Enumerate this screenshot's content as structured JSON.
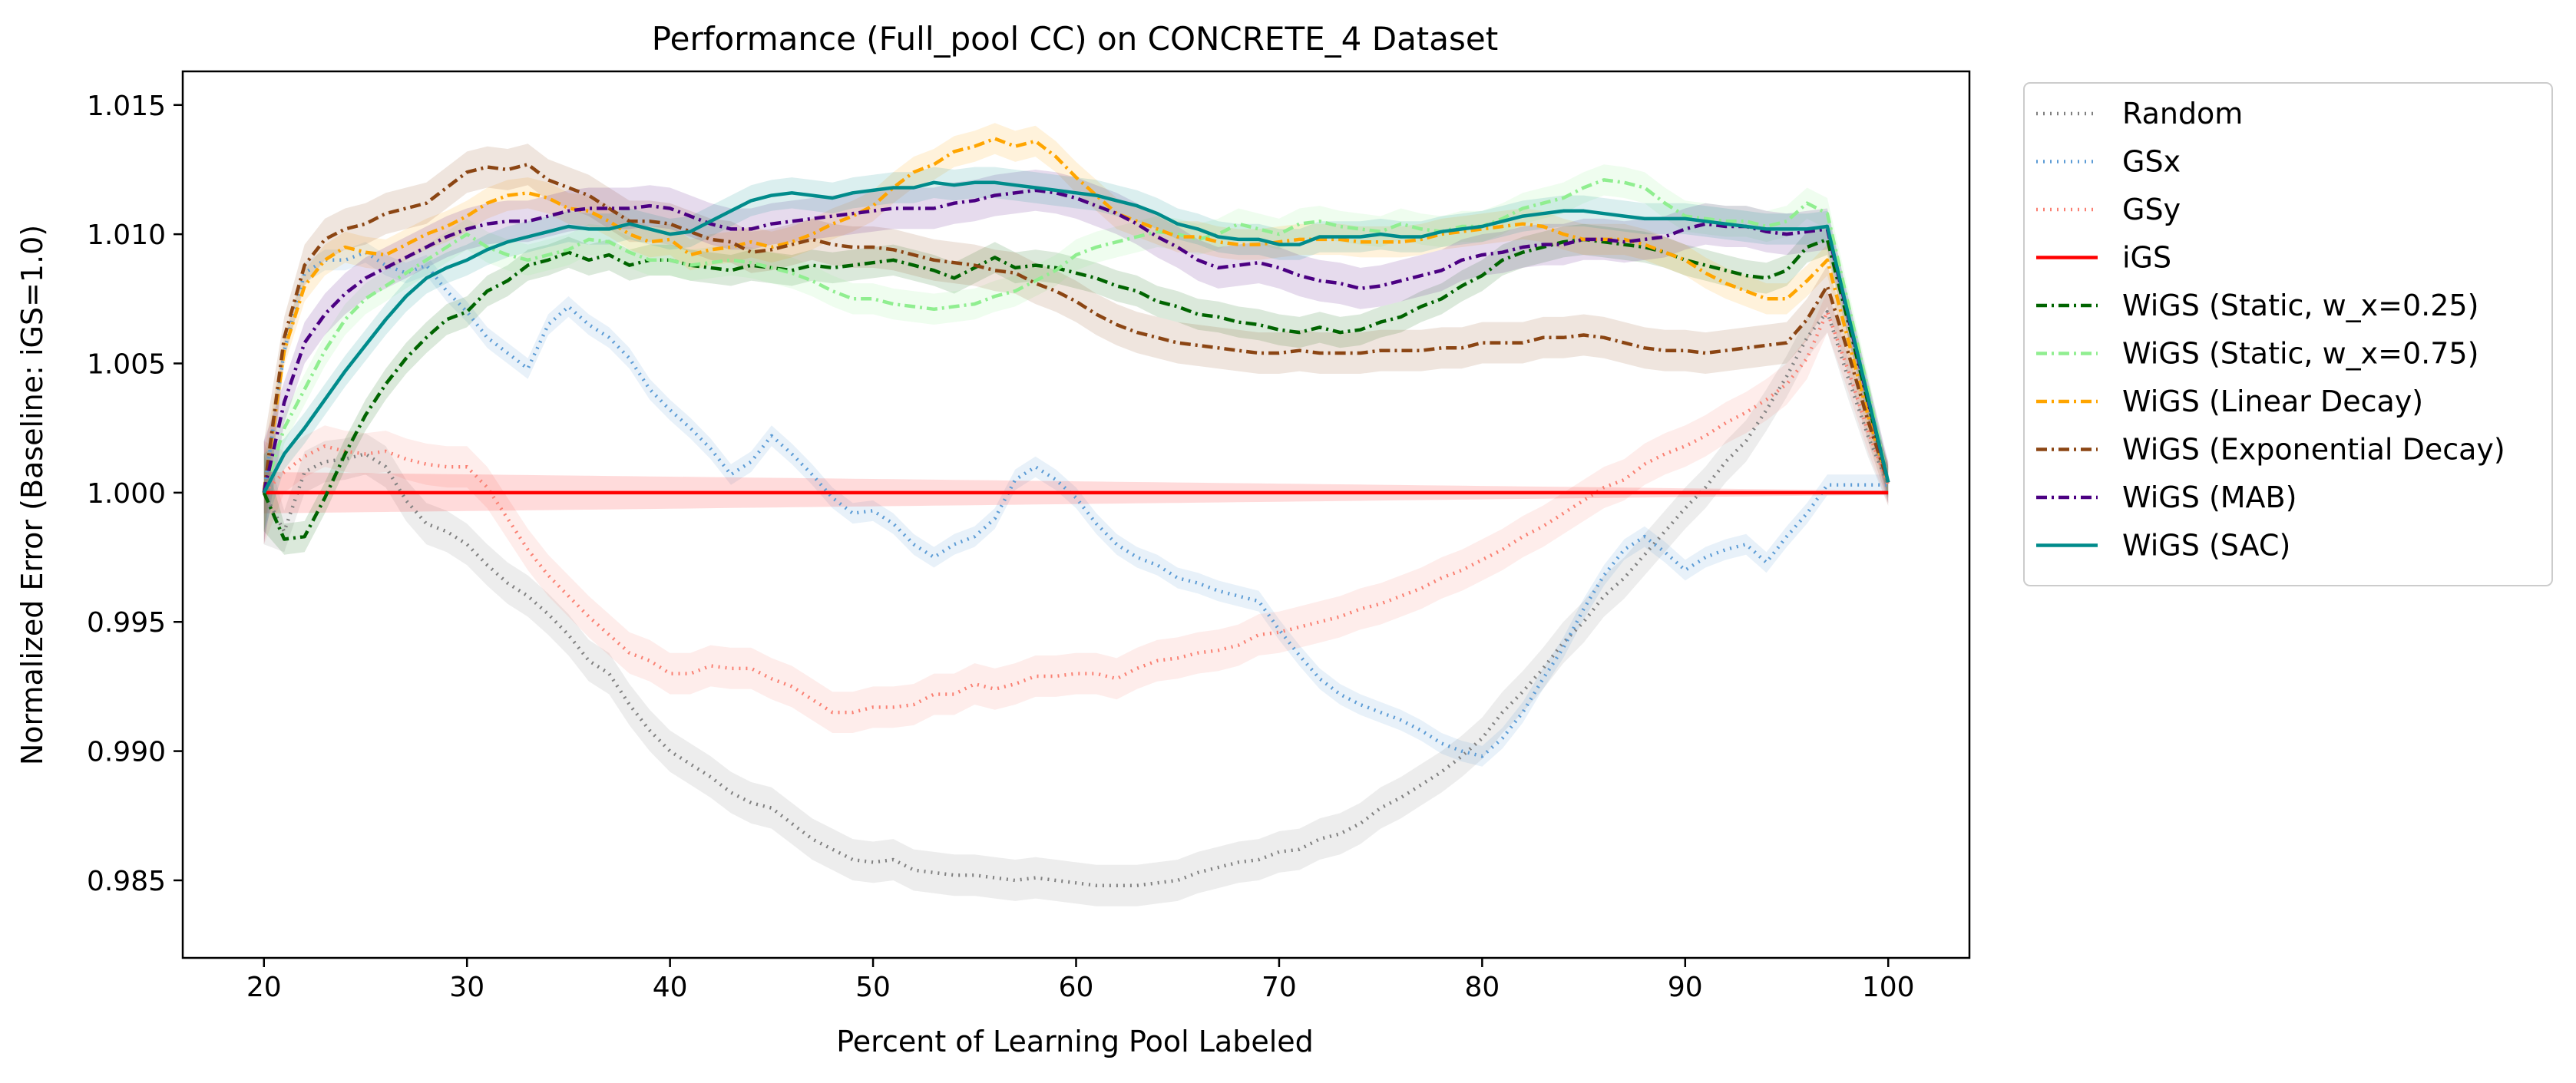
{
  "chart_data": {
    "type": "line",
    "title": "Performance (Full_pool CC) on CONCRETE_4 Dataset",
    "xlabel": "Percent of Learning Pool Labeled",
    "ylabel": "Normalized Error (Baseline: iGS=1.0)",
    "xlim": [
      16,
      104
    ],
    "ylim": [
      0.982,
      1.0163
    ],
    "xticks": [
      20,
      30,
      40,
      50,
      60,
      70,
      80,
      90,
      100
    ],
    "xtick_labels": [
      "20",
      "30",
      "40",
      "50",
      "60",
      "70",
      "80",
      "90",
      "100"
    ],
    "yticks": [
      0.985,
      0.99,
      0.995,
      1.0,
      1.005,
      1.01,
      1.015
    ],
    "ytick_labels": [
      "0.985",
      "0.990",
      "0.995",
      "1.000",
      "1.005",
      "1.010",
      "1.015"
    ],
    "grid": false,
    "legend_position": "outside-right-top",
    "x": [
      20,
      21,
      22,
      23,
      24,
      25,
      26,
      27,
      28,
      29,
      30,
      31,
      32,
      33,
      34,
      35,
      36,
      37,
      38,
      39,
      40,
      41,
      42,
      43,
      44,
      45,
      46,
      47,
      48,
      49,
      50,
      51,
      52,
      53,
      54,
      55,
      56,
      57,
      58,
      59,
      60,
      61,
      62,
      63,
      64,
      65,
      66,
      67,
      68,
      69,
      70,
      71,
      72,
      73,
      74,
      75,
      76,
      77,
      78,
      79,
      80,
      81,
      82,
      83,
      84,
      85,
      86,
      87,
      88,
      89,
      90,
      91,
      92,
      93,
      94,
      95,
      96,
      97,
      98,
      99,
      100
    ],
    "series": [
      {
        "name": "Random",
        "color": "#808080",
        "dash": "dotted",
        "band": 0.0008,
        "values": [
          1.0,
          0.9985,
          1.0008,
          1.0012,
          1.0013,
          1.0015,
          1.001,
          0.9997,
          0.9988,
          0.9985,
          0.998,
          0.9972,
          0.9965,
          0.996,
          0.9953,
          0.9945,
          0.9935,
          0.993,
          0.9918,
          0.9908,
          0.99,
          0.9895,
          0.989,
          0.9884,
          0.988,
          0.9878,
          0.9872,
          0.9866,
          0.9862,
          0.9858,
          0.9857,
          0.9858,
          0.9854,
          0.9853,
          0.9852,
          0.9852,
          0.9851,
          0.985,
          0.9851,
          0.985,
          0.9849,
          0.9848,
          0.9848,
          0.9848,
          0.9849,
          0.985,
          0.9853,
          0.9855,
          0.9857,
          0.9858,
          0.9861,
          0.9862,
          0.9866,
          0.9868,
          0.9872,
          0.9878,
          0.9882,
          0.9887,
          0.9892,
          0.9898,
          0.9905,
          0.9915,
          0.9923,
          0.9932,
          0.9942,
          0.995,
          0.996,
          0.9967,
          0.9976,
          0.9985,
          0.9994,
          1.0002,
          1.0012,
          1.002,
          1.0032,
          1.0045,
          1.006,
          1.007,
          1.0045,
          1.0022,
          1.0003
        ]
      },
      {
        "name": "GSx",
        "color": "#5b9bd5",
        "dash": "dotted",
        "band": 0.0004,
        "values": [
          1.0,
          1.0055,
          1.0085,
          1.009,
          1.009,
          1.0093,
          1.0088,
          1.0085,
          1.0088,
          1.0078,
          1.007,
          1.006,
          1.0054,
          1.0048,
          1.0065,
          1.0072,
          1.0065,
          1.006,
          1.0052,
          1.004,
          1.0032,
          1.0025,
          1.0017,
          1.0007,
          1.0012,
          1.0022,
          1.0015,
          1.0007,
          0.9998,
          0.9992,
          0.9993,
          0.9988,
          0.998,
          0.9975,
          0.998,
          0.9983,
          0.999,
          1.0005,
          1.001,
          1.0005,
          0.9998,
          0.9988,
          0.998,
          0.9975,
          0.9972,
          0.9967,
          0.9965,
          0.9962,
          0.996,
          0.9958,
          0.9947,
          0.9937,
          0.9928,
          0.9922,
          0.9918,
          0.9915,
          0.9912,
          0.9908,
          0.9903,
          0.99,
          0.9898,
          0.9905,
          0.9915,
          0.9928,
          0.994,
          0.9955,
          0.9968,
          0.9978,
          0.9983,
          0.9977,
          0.997,
          0.9975,
          0.9978,
          0.998,
          0.9973,
          0.9983,
          0.9992,
          1.0003,
          1.0003,
          1.0003,
          1.0003
        ]
      },
      {
        "name": "GSy",
        "color": "#fa8072",
        "dash": "dotted",
        "band": 0.0008,
        "values": [
          1.0,
          1.0008,
          1.0014,
          1.0018,
          1.0016,
          1.0015,
          1.0016,
          1.0013,
          1.0011,
          1.001,
          1.001,
          1.0002,
          0.999,
          0.9978,
          0.9968,
          0.996,
          0.9952,
          0.9945,
          0.9938,
          0.9935,
          0.993,
          0.993,
          0.9933,
          0.9932,
          0.9932,
          0.9928,
          0.9925,
          0.992,
          0.9915,
          0.9915,
          0.9917,
          0.9917,
          0.9918,
          0.9922,
          0.9922,
          0.9926,
          0.9924,
          0.9926,
          0.9929,
          0.9929,
          0.993,
          0.993,
          0.9928,
          0.9932,
          0.9935,
          0.9936,
          0.9938,
          0.9939,
          0.9941,
          0.9945,
          0.9946,
          0.9948,
          0.995,
          0.9952,
          0.9955,
          0.9957,
          0.996,
          0.9963,
          0.9967,
          0.997,
          0.9974,
          0.9978,
          0.9983,
          0.9987,
          0.9992,
          0.9997,
          1.0002,
          1.0005,
          1.0011,
          1.0015,
          1.0018,
          1.0022,
          1.0027,
          1.0031,
          1.0036,
          1.0042,
          1.0052,
          1.007,
          1.0048,
          1.0024,
          1.0003
        ]
      },
      {
        "name": "iGS",
        "color": "#ff0000",
        "dash": "solid",
        "band": 0.0008,
        "band_taper": true,
        "values": [
          1.0,
          1.0,
          1.0,
          1.0,
          1.0,
          1.0,
          1.0,
          1.0,
          1.0,
          1.0,
          1.0,
          1.0,
          1.0,
          1.0,
          1.0,
          1.0,
          1.0,
          1.0,
          1.0,
          1.0,
          1.0,
          1.0,
          1.0,
          1.0,
          1.0,
          1.0,
          1.0,
          1.0,
          1.0,
          1.0,
          1.0,
          1.0,
          1.0,
          1.0,
          1.0,
          1.0,
          1.0,
          1.0,
          1.0,
          1.0,
          1.0,
          1.0,
          1.0,
          1.0,
          1.0,
          1.0,
          1.0,
          1.0,
          1.0,
          1.0,
          1.0,
          1.0,
          1.0,
          1.0,
          1.0,
          1.0,
          1.0,
          1.0,
          1.0,
          1.0,
          1.0,
          1.0,
          1.0,
          1.0,
          1.0,
          1.0,
          1.0,
          1.0,
          1.0,
          1.0,
          1.0,
          1.0,
          1.0,
          1.0,
          1.0,
          1.0,
          1.0,
          1.0,
          1.0,
          1.0,
          1.0
        ]
      },
      {
        "name": "WiGS (Static, w_x=0.25)",
        "color": "#006400",
        "dash": "dashdot",
        "band": 0.0006,
        "values": [
          1.0,
          0.9982,
          0.9983,
          0.9998,
          1.0015,
          1.003,
          1.0042,
          1.0052,
          1.006,
          1.0067,
          1.007,
          1.0078,
          1.0082,
          1.0088,
          1.009,
          1.0093,
          1.009,
          1.0092,
          1.0088,
          1.009,
          1.009,
          1.0088,
          1.0087,
          1.0086,
          1.0088,
          1.0087,
          1.0086,
          1.0088,
          1.0087,
          1.0088,
          1.0089,
          1.009,
          1.0088,
          1.0086,
          1.0083,
          1.0087,
          1.0091,
          1.0087,
          1.0088,
          1.0087,
          1.0085,
          1.0083,
          1.008,
          1.0078,
          1.0074,
          1.0072,
          1.0069,
          1.0068,
          1.0066,
          1.0065,
          1.0063,
          1.0062,
          1.0064,
          1.0062,
          1.0063,
          1.0066,
          1.0068,
          1.0072,
          1.0075,
          1.008,
          1.0084,
          1.009,
          1.0093,
          1.0095,
          1.0097,
          1.0098,
          1.0097,
          1.0096,
          1.0095,
          1.0093,
          1.009,
          1.0088,
          1.0086,
          1.0084,
          1.0083,
          1.0086,
          1.0095,
          1.0098,
          1.0067,
          1.0035,
          1.0004
        ]
      },
      {
        "name": "WiGS (Static, w_x=0.75)",
        "color": "#90ee90",
        "dash": "dashdot",
        "band": 0.0006,
        "values": [
          1.0,
          1.0025,
          1.004,
          1.0055,
          1.0067,
          1.0075,
          1.008,
          1.0085,
          1.009,
          1.0095,
          1.01,
          1.0095,
          1.0092,
          1.009,
          1.0092,
          1.0094,
          1.0098,
          1.0097,
          1.0093,
          1.009,
          1.009,
          1.0088,
          1.0089,
          1.009,
          1.0089,
          1.0087,
          1.0085,
          1.0082,
          1.0078,
          1.0075,
          1.0075,
          1.0073,
          1.0072,
          1.0071,
          1.0072,
          1.0073,
          1.0076,
          1.0078,
          1.0082,
          1.0086,
          1.0092,
          1.0095,
          1.0097,
          1.0099,
          1.0101,
          1.01,
          1.0098,
          1.01,
          1.0104,
          1.0102,
          1.01,
          1.0104,
          1.0105,
          1.0103,
          1.0102,
          1.0101,
          1.0104,
          1.0102,
          1.0101,
          1.0103,
          1.0103,
          1.0106,
          1.011,
          1.0112,
          1.0114,
          1.0118,
          1.0121,
          1.012,
          1.0118,
          1.0112,
          1.0107,
          1.0106,
          1.0105,
          1.0105,
          1.0103,
          1.0105,
          1.0112,
          1.0108,
          1.0074,
          1.004,
          1.0004
        ]
      },
      {
        "name": "WiGS (Linear Decay)",
        "color": "#ffa500",
        "dash": "dashdot",
        "band": 0.0006,
        "values": [
          1.0,
          1.0055,
          1.008,
          1.009,
          1.0095,
          1.0093,
          1.0092,
          1.0096,
          1.01,
          1.0103,
          1.0107,
          1.0112,
          1.0115,
          1.0116,
          1.0114,
          1.011,
          1.0109,
          1.0105,
          1.01,
          1.0097,
          1.0098,
          1.0092,
          1.0094,
          1.0095,
          1.0097,
          1.0095,
          1.0097,
          1.01,
          1.0104,
          1.0107,
          1.0111,
          1.0118,
          1.0124,
          1.0127,
          1.0132,
          1.0134,
          1.0137,
          1.0134,
          1.0136,
          1.013,
          1.0122,
          1.0115,
          1.0108,
          1.0105,
          1.0102,
          1.0099,
          1.0099,
          1.0097,
          1.0096,
          1.0096,
          1.0097,
          1.0098,
          1.0098,
          1.0098,
          1.0097,
          1.0097,
          1.0097,
          1.0098,
          1.01,
          1.0101,
          1.0102,
          1.0103,
          1.0104,
          1.0103,
          1.01,
          1.0098,
          1.0098,
          1.0098,
          1.0096,
          1.0093,
          1.009,
          1.0085,
          1.0081,
          1.0078,
          1.0075,
          1.0075,
          1.0082,
          1.009,
          1.006,
          1.003,
          1.0004
        ]
      },
      {
        "name": "WiGS (Exponential Decay)",
        "color": "#8b4513",
        "dash": "dashdot",
        "band": 0.0008,
        "values": [
          1.0,
          1.006,
          1.0088,
          1.0098,
          1.0102,
          1.0104,
          1.0108,
          1.011,
          1.0112,
          1.0118,
          1.0124,
          1.0126,
          1.0125,
          1.0127,
          1.0121,
          1.0118,
          1.0115,
          1.011,
          1.0105,
          1.0105,
          1.0104,
          1.0101,
          1.0098,
          1.0097,
          1.0093,
          1.0094,
          1.0096,
          1.0098,
          1.0096,
          1.0095,
          1.0095,
          1.0094,
          1.0092,
          1.009,
          1.0089,
          1.0088,
          1.0086,
          1.0085,
          1.0081,
          1.0078,
          1.0074,
          1.0069,
          1.0065,
          1.0062,
          1.006,
          1.0058,
          1.0057,
          1.0056,
          1.0055,
          1.0054,
          1.0054,
          1.0055,
          1.0054,
          1.0054,
          1.0054,
          1.0055,
          1.0055,
          1.0055,
          1.0056,
          1.0056,
          1.0058,
          1.0058,
          1.0058,
          1.006,
          1.006,
          1.0061,
          1.006,
          1.0058,
          1.0056,
          1.0055,
          1.0055,
          1.0054,
          1.0055,
          1.0056,
          1.0057,
          1.0058,
          1.0067,
          1.008,
          1.0055,
          1.0028,
          1.0004
        ]
      },
      {
        "name": "WiGS (MAB)",
        "color": "#4b0082",
        "dash": "dashdot",
        "band": 0.0008,
        "values": [
          1.0,
          1.0035,
          1.0058,
          1.0069,
          1.0077,
          1.0083,
          1.0087,
          1.0091,
          1.0095,
          1.0099,
          1.0102,
          1.0104,
          1.0105,
          1.0105,
          1.0107,
          1.0109,
          1.011,
          1.011,
          1.011,
          1.0111,
          1.011,
          1.0107,
          1.0104,
          1.0102,
          1.0102,
          1.0104,
          1.0105,
          1.0106,
          1.0107,
          1.0108,
          1.0109,
          1.011,
          1.011,
          1.011,
          1.0112,
          1.0113,
          1.0115,
          1.0116,
          1.0117,
          1.0116,
          1.0114,
          1.0111,
          1.0108,
          1.0104,
          1.0099,
          1.0095,
          1.009,
          1.0087,
          1.0088,
          1.0089,
          1.0087,
          1.0084,
          1.0082,
          1.0081,
          1.0079,
          1.008,
          1.0082,
          1.0084,
          1.0086,
          1.009,
          1.0092,
          1.0093,
          1.0095,
          1.0096,
          1.0096,
          1.0098,
          1.0098,
          1.0097,
          1.0098,
          1.0099,
          1.0102,
          1.0104,
          1.0103,
          1.0103,
          1.0101,
          1.01,
          1.0101,
          1.0102,
          1.0069,
          1.0036,
          1.0004
        ]
      },
      {
        "name": "WiGS (SAC)",
        "color": "#008b8b",
        "dash": "solid",
        "band": 0.0006,
        "values": [
          1.0,
          1.0015,
          1.0025,
          1.0036,
          1.0047,
          1.0057,
          1.0067,
          1.0076,
          1.0083,
          1.0087,
          1.009,
          1.0094,
          1.0097,
          1.0099,
          1.0101,
          1.0103,
          1.0102,
          1.0102,
          1.0104,
          1.0102,
          1.01,
          1.0101,
          1.0105,
          1.0109,
          1.0113,
          1.0115,
          1.0116,
          1.0115,
          1.0114,
          1.0116,
          1.0117,
          1.0118,
          1.0118,
          1.012,
          1.0119,
          1.012,
          1.012,
          1.0119,
          1.0118,
          1.0117,
          1.0116,
          1.0115,
          1.0113,
          1.0111,
          1.0108,
          1.0104,
          1.0102,
          1.0099,
          1.0098,
          1.0098,
          1.0096,
          1.0096,
          1.0099,
          1.0099,
          1.0099,
          1.01,
          1.0099,
          1.0099,
          1.0101,
          1.0102,
          1.0103,
          1.0105,
          1.0107,
          1.0108,
          1.0109,
          1.0109,
          1.0108,
          1.0107,
          1.0106,
          1.0106,
          1.0106,
          1.0105,
          1.0104,
          1.0103,
          1.0102,
          1.0102,
          1.0102,
          1.0103,
          1.007,
          1.0037,
          1.0004
        ]
      }
    ]
  }
}
